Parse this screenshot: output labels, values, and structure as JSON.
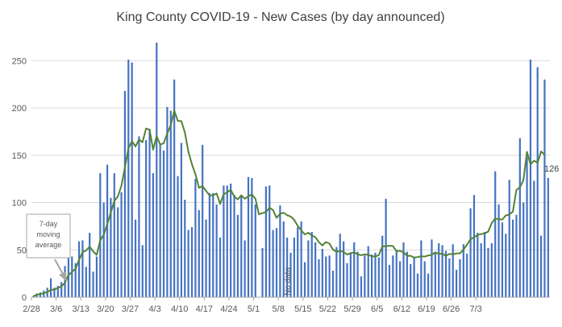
{
  "chart_data": {
    "type": "bar",
    "title": "King County COVID-19 - New Cases (by day announced)",
    "xlabel": "",
    "ylabel": "",
    "ylim": [
      0,
      280
    ],
    "yticks": [
      0,
      50,
      100,
      150,
      200,
      250
    ],
    "grid": true,
    "x_tick_labels": [
      "2/28",
      "3/6",
      "3/13",
      "3/20",
      "3/27",
      "4/3",
      "4/10",
      "4/17",
      "4/24",
      "5/1",
      "5/8",
      "5/15",
      "5/22",
      "5/29",
      "6/5",
      "6/12",
      "6/19",
      "6/26",
      "7/3"
    ],
    "x_tick_every": 7,
    "bar_color": "#4472c4",
    "line_color": "#548235",
    "series": [
      {
        "name": "New Cases",
        "values": [
          1,
          4,
          5,
          7,
          10,
          20,
          10,
          12,
          16,
          33,
          74,
          43,
          36,
          59,
          60,
          32,
          68,
          27,
          43,
          131,
          100,
          140,
          105,
          131,
          95,
          111,
          218,
          251,
          248,
          82,
          170,
          55,
          166,
          178,
          131,
          269,
          162,
          155,
          201,
          197,
          230,
          128,
          163,
          103,
          71,
          74,
          125,
          92,
          161,
          82,
          110,
          110,
          98,
          63,
          118,
          118,
          120,
          108,
          87,
          108,
          60,
          127,
          126,
          98,
          0,
          52,
          117,
          118,
          71,
          73,
          97,
          80,
          63,
          47,
          63,
          74,
          80,
          37,
          60,
          69,
          58,
          40,
          51,
          43,
          44,
          28,
          53,
          67,
          59,
          36,
          47,
          58,
          48,
          22,
          44,
          54,
          45,
          47,
          42,
          65,
          104,
          34,
          44,
          50,
          38,
          58,
          48,
          35,
          42,
          25,
          60,
          38,
          25,
          61,
          48,
          57,
          55,
          49,
          41,
          56,
          29,
          40,
          56,
          46,
          94,
          108,
          68,
          57,
          69,
          52,
          57,
          133,
          98,
          79,
          67,
          124,
          82,
          87,
          168,
          100,
          148,
          251,
          123,
          243,
          65,
          230,
          126
        ]
      },
      {
        "name": "7-day moving average",
        "values": [
          1,
          2.5,
          3.3,
          4.3,
          5.4,
          7.8,
          8.1,
          9.7,
          11.4,
          15.3,
          23,
          26.9,
          30,
          39.4,
          47.6,
          49.4,
          53.4,
          48.4,
          44.7,
          60,
          65.9,
          77.3,
          89.4,
          101.7,
          106.4,
          117.6,
          137.1,
          157.3,
          164.8,
          159.3,
          166.6,
          163.8,
          178.3,
          176.9,
          155.9,
          170.2,
          161.3,
          162.6,
          172.9,
          181.7,
          197.1,
          186.3,
          186.1,
          174.1,
          153.7,
          140.6,
          129.9,
          115.6,
          117.4,
          112.4,
          107.6,
          107.7,
          109.6,
          98.6,
          108.7,
          110.8,
          113.6,
          106.3,
          103.4,
          107.6,
          104.1,
          106.6,
          108.7,
          104,
          87.6,
          88.9,
          90,
          94.6,
          92.1,
          83.9,
          88.2,
          89.3,
          86.6,
          85.3,
          81.7,
          75.4,
          70.6,
          66.4,
          68.1,
          65.3,
          63.4,
          58.1,
          54.7,
          58.3,
          56.6,
          50.3,
          48,
          49,
          47.7,
          45.1,
          46.6,
          47.3,
          45.5,
          44.3,
          45.3,
          44.7,
          43.4,
          42.9,
          44.6,
          53.6,
          54,
          54.4,
          54,
          48.6,
          48.9,
          47.6,
          43.7,
          43.7,
          41.9,
          42.4,
          43.3,
          42.9,
          44.1,
          44.7,
          47.4,
          45.7,
          46.1,
          43.6,
          45.7,
          45.3,
          46.3,
          46.3,
          50.4,
          55.4,
          61.4,
          63.1,
          65.9,
          66.7,
          67.4,
          69.3,
          78.3,
          83.1,
          82.4,
          82,
          86.4,
          87.3,
          90.5,
          113.3,
          116.1,
          123.8,
          153.6,
          140.4,
          144.3,
          142.1,
          154,
          150.5
        ]
      }
    ],
    "annotations": [
      {
        "text": "7-day moving average",
        "kind": "callout-box"
      },
      {
        "text": "No data",
        "kind": "vertical-label"
      },
      {
        "text": "126",
        "kind": "last-value-label"
      }
    ]
  },
  "labels": {
    "title": "King County COVID-19 - New Cases (by day announced)",
    "callout_line1": "7-day",
    "callout_line2": "moving",
    "callout_line3": "average",
    "no_data": "No data",
    "last_value": "126"
  }
}
